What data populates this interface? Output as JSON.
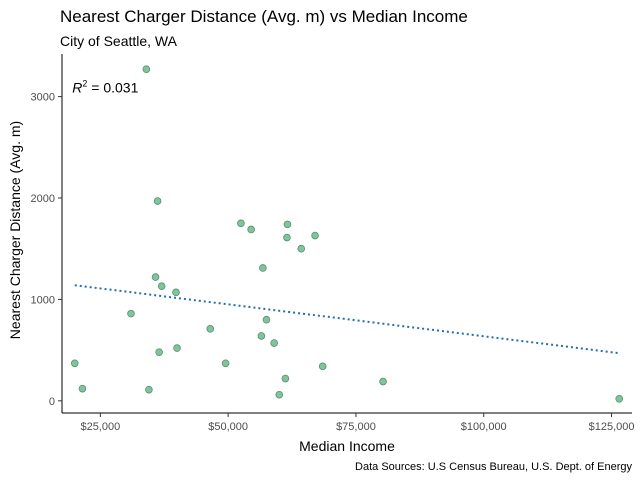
{
  "chart_data": {
    "type": "scatter",
    "title": "Nearest Charger Distance (Avg. m) vs Median Income",
    "subtitle": "City of Seattle, WA",
    "xlabel": "Median Income",
    "ylabel": "Nearest Charger Distance (Avg. m)",
    "caption": "Data Sources: U.S Census Bureau, U.S. Dept. of Energy",
    "xlim": [
      17500,
      129000
    ],
    "ylim": [
      -120,
      3420
    ],
    "x_ticks": [
      25000,
      50000,
      75000,
      100000,
      125000
    ],
    "x_tick_labels": [
      "$25,000",
      "$50,000",
      "$75,000",
      "$100,000",
      "$125,000"
    ],
    "y_ticks": [
      0,
      1000,
      2000,
      3000
    ],
    "y_tick_labels": [
      "0",
      "1000",
      "2000",
      "3000"
    ],
    "grid": false,
    "annotation": {
      "prefix": "R",
      "superscript": "2",
      "suffix": " = 0.031",
      "x": 19500,
      "y": 3080
    },
    "trend_line": {
      "style": "dotted",
      "x": [
        20000,
        126500
      ],
      "y": [
        1140,
        470
      ]
    },
    "points": [
      {
        "x": 20000,
        "y": 370
      },
      {
        "x": 21500,
        "y": 120
      },
      {
        "x": 31000,
        "y": 860
      },
      {
        "x": 34000,
        "y": 3270
      },
      {
        "x": 34500,
        "y": 110
      },
      {
        "x": 35800,
        "y": 1220
      },
      {
        "x": 36200,
        "y": 1970
      },
      {
        "x": 36500,
        "y": 480
      },
      {
        "x": 37000,
        "y": 1130
      },
      {
        "x": 39800,
        "y": 1070
      },
      {
        "x": 40000,
        "y": 520
      },
      {
        "x": 46500,
        "y": 710
      },
      {
        "x": 49500,
        "y": 370
      },
      {
        "x": 52500,
        "y": 1750
      },
      {
        "x": 54500,
        "y": 1690
      },
      {
        "x": 56500,
        "y": 640
      },
      {
        "x": 56800,
        "y": 1310
      },
      {
        "x": 57500,
        "y": 800
      },
      {
        "x": 59000,
        "y": 570
      },
      {
        "x": 60000,
        "y": 60
      },
      {
        "x": 61200,
        "y": 220
      },
      {
        "x": 61500,
        "y": 1610
      },
      {
        "x": 61600,
        "y": 1740
      },
      {
        "x": 64300,
        "y": 1500
      },
      {
        "x": 67000,
        "y": 1630
      },
      {
        "x": 68500,
        "y": 340
      },
      {
        "x": 80300,
        "y": 190
      },
      {
        "x": 126500,
        "y": 20
      }
    ]
  },
  "colors": {
    "point_fill": "#7fc49b",
    "point_stroke": "#5a8f6e",
    "trend_line": "#1f6fb5",
    "axis": "#000000"
  }
}
